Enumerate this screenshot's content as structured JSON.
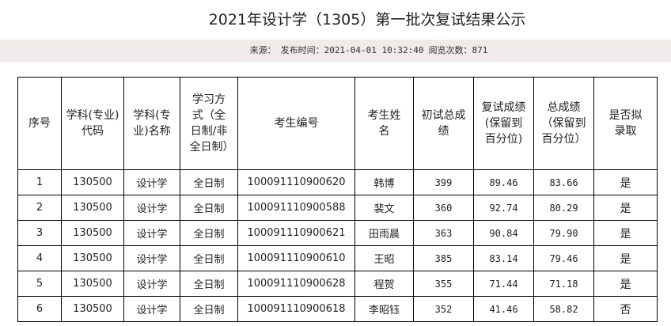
{
  "title": "2021年设计学（1305）第一批次复试结果公示",
  "meta": {
    "source_label": "来源：",
    "publish_label": "发布时间：",
    "publish_time": "2021-04-01 10:32:40",
    "views_label": "阅览次数：",
    "views": "871"
  },
  "table": {
    "headers": [
      "序号",
      "学科(专业)代码",
      "学科(专业)名称",
      "学习方式（全日制/非全日制）",
      "考生编号",
      "考生姓名",
      "初试总成绩",
      "复试成绩(保留到百分位)",
      "总成绩（保留到百分位）",
      "是否拟录取"
    ],
    "rows": [
      [
        "1",
        "130500",
        "设计学",
        "全日制",
        "100091110900620",
        "韩博",
        "399",
        "89.46",
        "83.66",
        "是"
      ],
      [
        "2",
        "130500",
        "设计学",
        "全日制",
        "100091110900588",
        "裴文",
        "360",
        "92.74",
        "80.29",
        "是"
      ],
      [
        "3",
        "130500",
        "设计学",
        "全日制",
        "100091110900621",
        "田雨晨",
        "363",
        "90.84",
        "79.90",
        "是"
      ],
      [
        "4",
        "130500",
        "设计学",
        "全日制",
        "100091110900610",
        "王昭",
        "385",
        "83.14",
        "79.46",
        "是"
      ],
      [
        "5",
        "130500",
        "设计学",
        "全日制",
        "100091110900628",
        "程贺",
        "355",
        "71.44",
        "71.18",
        "是"
      ],
      [
        "6",
        "130500",
        "设计学",
        "全日制",
        "100091110900618",
        "李昭钰",
        "352",
        "41.46",
        "58.82",
        "否"
      ]
    ]
  }
}
